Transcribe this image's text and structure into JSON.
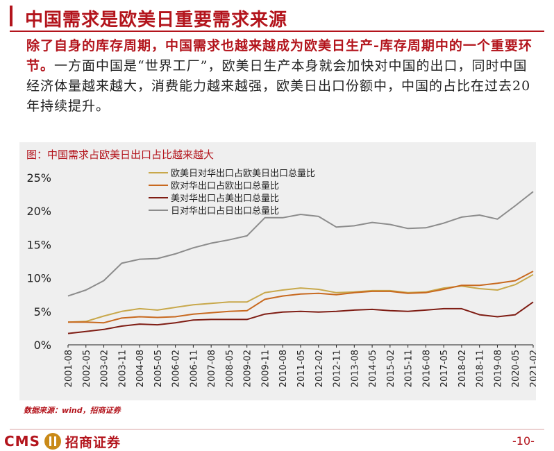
{
  "header": {
    "title": "中国需求是欧美日重要需求来源",
    "para_em": "除了自身的库存周期，中国需求也越来越成为欧美日生产-库存周期中的一个重要环节。",
    "para_rest": "一方面中国是“世界工厂”，欧美日生产本身就会加快对中国的出口，同时中国经济体量越来越大，消费能力越来越强，欧美日出口份额中，中国的占比在过去20年持续提升。"
  },
  "chart_title": "图：中国需求占欧美日出口占比越来越大",
  "source": "数据来源：wind，招商证券",
  "footer": {
    "logo_text": "CMS",
    "company": "招商证券",
    "page": "-10-"
  },
  "colors": {
    "brand": "#b3141c",
    "s1": "#c8a84b",
    "s2": "#c8691f",
    "s3": "#7f1d14",
    "s4": "#8c8c8c"
  },
  "chart_data": {
    "type": "line",
    "title": "图：中国需求占欧美日出口占比越来越大",
    "x_ticks": [
      "2001-08",
      "2002-05",
      "2003-02",
      "2003-11",
      "2004-08",
      "2005-05",
      "2006-02",
      "2006-11",
      "2007-08",
      "2008-05",
      "2009-02",
      "2009-11",
      "2010-08",
      "2011-05",
      "2012-02",
      "2012-11",
      "2013-08",
      "2014-05",
      "2015-02",
      "2015-11",
      "2016-08",
      "2017-05",
      "2018-02",
      "2018-11",
      "2019-08",
      "2020-05",
      "2021-02"
    ],
    "y_ticks": [
      "0%",
      "5%",
      "10%",
      "15%",
      "20%",
      "25%"
    ],
    "ylim": [
      0,
      25
    ],
    "legend_position": "top-left",
    "grid": false,
    "series": [
      {
        "name": "欧美日对华出口占欧美日出口总量比",
        "color": "#c8a84b",
        "values": [
          3.4,
          3.5,
          4.3,
          5.0,
          5.4,
          5.2,
          5.6,
          6.0,
          6.2,
          6.4,
          6.4,
          7.8,
          8.2,
          8.5,
          8.3,
          7.8,
          7.9,
          8.1,
          8.1,
          7.8,
          7.9,
          8.5,
          8.8,
          8.4,
          8.2,
          9.0,
          10.5
        ]
      },
      {
        "name": "欧对华出口占欧出口总量比",
        "color": "#c8691f",
        "values": [
          3.4,
          3.4,
          3.3,
          4.0,
          4.2,
          4.1,
          4.2,
          4.6,
          4.8,
          5.0,
          5.1,
          6.8,
          7.3,
          7.6,
          7.7,
          7.5,
          7.8,
          8.0,
          8.0,
          7.7,
          7.8,
          8.3,
          8.9,
          8.9,
          9.2,
          9.6,
          11.0
        ]
      },
      {
        "name": "美对华出口占美出口总量比",
        "color": "#7f1d14",
        "values": [
          1.7,
          2.0,
          2.3,
          2.8,
          3.1,
          3.0,
          3.3,
          3.7,
          3.8,
          3.8,
          3.8,
          4.6,
          4.9,
          5.0,
          4.9,
          5.0,
          5.2,
          5.3,
          5.1,
          5.0,
          5.2,
          5.4,
          5.4,
          4.5,
          4.2,
          4.5,
          6.4
        ]
      },
      {
        "name": "日对华出口占日出口总量比",
        "color": "#8c8c8c",
        "values": [
          7.3,
          8.2,
          9.6,
          12.2,
          12.8,
          12.9,
          13.6,
          14.5,
          15.2,
          15.7,
          16.3,
          19.0,
          19.0,
          19.5,
          19.2,
          17.6,
          17.8,
          18.3,
          18.0,
          17.4,
          17.5,
          18.2,
          19.1,
          19.4,
          18.8,
          20.8,
          22.9
        ]
      }
    ]
  }
}
